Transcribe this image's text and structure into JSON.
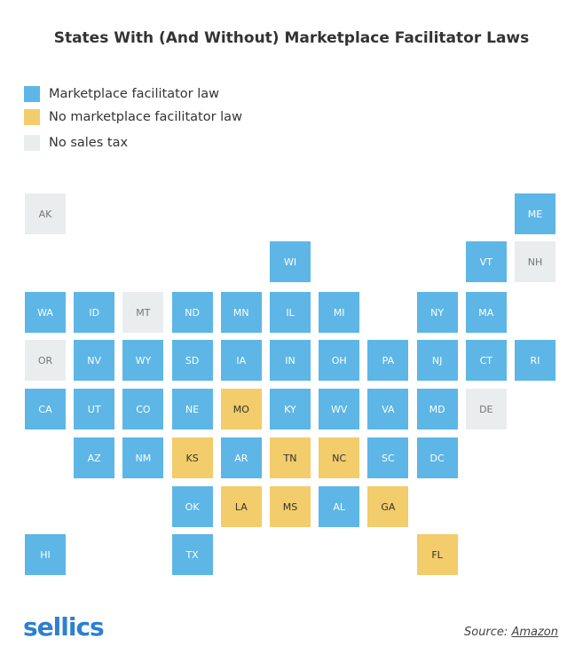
{
  "title": "States With (And Without) Marketplace Facilitator Laws",
  "legend": [
    {
      "label": "Marketplace facilitator law",
      "color": "#5db6e6"
    },
    {
      "label": "No marketplace facilitator law",
      "color": "#f3cc6b"
    },
    {
      "label": "No sales tax",
      "color": "#e9eded"
    }
  ],
  "tiles": [
    {
      "label": "AK",
      "status": 2
    },
    {
      "label": "ME",
      "status": 0
    },
    {
      "label": "WI",
      "status": 0
    },
    {
      "label": "VT",
      "status": 0
    },
    {
      "label": "NH",
      "status": 2
    },
    {
      "label": "WA",
      "status": 0
    },
    {
      "label": "ID",
      "status": 0
    },
    {
      "label": "MT",
      "status": 2
    },
    {
      "label": "ND",
      "status": 0
    },
    {
      "label": "MN",
      "status": 0
    },
    {
      "label": "IL",
      "status": 0
    },
    {
      "label": "MI",
      "status": 0
    },
    {
      "label": "NY",
      "status": 0
    },
    {
      "label": "MA",
      "status": 0
    },
    {
      "label": "OR",
      "status": 2
    },
    {
      "label": "NV",
      "status": 0
    },
    {
      "label": "WY",
      "status": 0
    },
    {
      "label": "SD",
      "status": 0
    },
    {
      "label": "IA",
      "status": 0
    },
    {
      "label": "IN",
      "status": 0
    },
    {
      "label": "OH",
      "status": 0
    },
    {
      "label": "PA",
      "status": 0
    },
    {
      "label": "NJ",
      "status": 0
    },
    {
      "label": "CT",
      "status": 0
    },
    {
      "label": "RI",
      "status": 0
    },
    {
      "label": "CA",
      "status": 0
    },
    {
      "label": "UT",
      "status": 0
    },
    {
      "label": "CO",
      "status": 0
    },
    {
      "label": "NE",
      "status": 0
    },
    {
      "label": "MO",
      "status": 1
    },
    {
      "label": "KY",
      "status": 0
    },
    {
      "label": "WV",
      "status": 0
    },
    {
      "label": "VA",
      "status": 0
    },
    {
      "label": "MD",
      "status": 0
    },
    {
      "label": "DE",
      "status": 2
    },
    {
      "label": "AZ",
      "status": 0
    },
    {
      "label": "NM",
      "status": 0
    },
    {
      "label": "KS",
      "status": 1
    },
    {
      "label": "AR",
      "status": 0
    },
    {
      "label": "TN",
      "status": 1
    },
    {
      "label": "NC",
      "status": 1
    },
    {
      "label": "SC",
      "status": 0
    },
    {
      "label": "DC",
      "status": 0
    },
    {
      "label": "OK",
      "status": 0
    },
    {
      "label": "LA",
      "status": 1
    },
    {
      "label": "MS",
      "status": 1
    },
    {
      "label": "AL",
      "status": 0
    },
    {
      "label": "GA",
      "status": 1
    },
    {
      "label": "HI",
      "status": 0
    },
    {
      "label": "TX",
      "status": 0
    },
    {
      "label": "FL",
      "status": 1
    }
  ],
  "footer": {
    "logo": "sellics",
    "source_prefix": "Source:",
    "source_link": "Amazon"
  }
}
